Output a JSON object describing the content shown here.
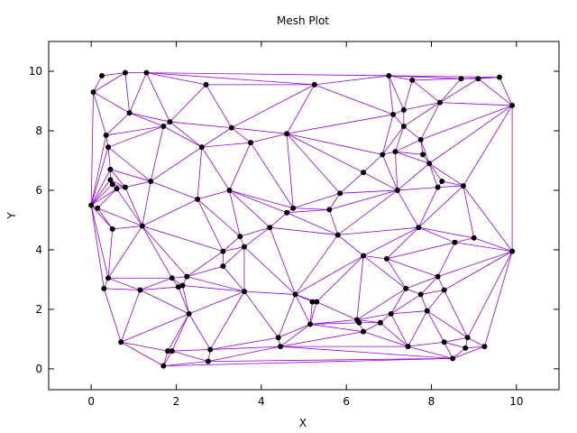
{
  "chart_data": {
    "type": "scatter",
    "title": "Mesh Plot",
    "xlabel": "X",
    "ylabel": "Y",
    "xlim": [
      -1,
      11
    ],
    "ylim": [
      -0.7,
      11
    ],
    "xticks": [
      0,
      2,
      4,
      6,
      8,
      10
    ],
    "yticks": [
      0,
      2,
      4,
      6,
      8,
      10
    ],
    "grid": false,
    "mesh_color": "#9400d3",
    "point_color": "#000000",
    "points": [
      [
        0.0,
        5.5
      ],
      [
        0.05,
        9.3
      ],
      [
        0.15,
        5.4
      ],
      [
        0.25,
        9.85
      ],
      [
        0.3,
        2.7
      ],
      [
        0.35,
        7.85
      ],
      [
        0.4,
        3.05
      ],
      [
        0.4,
        7.45
      ],
      [
        0.45,
        6.7
      ],
      [
        0.45,
        6.35
      ],
      [
        0.5,
        6.2
      ],
      [
        0.5,
        4.7
      ],
      [
        0.6,
        6.05
      ],
      [
        0.7,
        0.9
      ],
      [
        0.8,
        9.95
      ],
      [
        0.8,
        6.1
      ],
      [
        0.9,
        8.6
      ],
      [
        1.15,
        2.65
      ],
      [
        1.2,
        4.8
      ],
      [
        1.3,
        9.95
      ],
      [
        1.4,
        6.3
      ],
      [
        1.7,
        0.1
      ],
      [
        1.7,
        8.15
      ],
      [
        1.8,
        0.6
      ],
      [
        1.85,
        8.3
      ],
      [
        1.9,
        3.05
      ],
      [
        1.9,
        0.6
      ],
      [
        2.05,
        2.75
      ],
      [
        2.15,
        2.8
      ],
      [
        2.25,
        3.1
      ],
      [
        2.3,
        1.85
      ],
      [
        2.5,
        5.7
      ],
      [
        2.6,
        7.45
      ],
      [
        2.7,
        9.55
      ],
      [
        2.75,
        0.25
      ],
      [
        2.8,
        0.65
      ],
      [
        3.1,
        3.95
      ],
      [
        3.1,
        3.45
      ],
      [
        3.25,
        6.0
      ],
      [
        3.3,
        8.1
      ],
      [
        3.5,
        4.45
      ],
      [
        3.6,
        4.1
      ],
      [
        3.6,
        2.6
      ],
      [
        3.75,
        7.6
      ],
      [
        4.2,
        4.75
      ],
      [
        4.4,
        1.05
      ],
      [
        4.45,
        0.75
      ],
      [
        4.6,
        5.25
      ],
      [
        4.6,
        7.9
      ],
      [
        4.75,
        5.4
      ],
      [
        4.8,
        2.5
      ],
      [
        5.15,
        1.5
      ],
      [
        5.2,
        2.25
      ],
      [
        5.3,
        2.25
      ],
      [
        5.25,
        9.55
      ],
      [
        5.6,
        5.35
      ],
      [
        5.8,
        4.5
      ],
      [
        5.85,
        5.9
      ],
      [
        6.25,
        1.65
      ],
      [
        6.3,
        1.55
      ],
      [
        6.4,
        3.8
      ],
      [
        6.4,
        1.25
      ],
      [
        6.4,
        6.6
      ],
      [
        6.8,
        1.55
      ],
      [
        6.85,
        7.2
      ],
      [
        6.95,
        3.7
      ],
      [
        7.0,
        9.85
      ],
      [
        7.05,
        1.85
      ],
      [
        7.1,
        8.55
      ],
      [
        7.15,
        7.3
      ],
      [
        7.2,
        6.0
      ],
      [
        7.35,
        8.15
      ],
      [
        7.35,
        8.7
      ],
      [
        7.4,
        2.7
      ],
      [
        7.45,
        0.75
      ],
      [
        7.55,
        9.7
      ],
      [
        7.7,
        4.75
      ],
      [
        7.75,
        2.5
      ],
      [
        7.75,
        7.7
      ],
      [
        7.8,
        7.2
      ],
      [
        7.9,
        1.95
      ],
      [
        7.95,
        6.9
      ],
      [
        8.15,
        6.1
      ],
      [
        8.15,
        3.1
      ],
      [
        8.2,
        8.95
      ],
      [
        8.25,
        6.3
      ],
      [
        8.3,
        2.65
      ],
      [
        8.3,
        0.9
      ],
      [
        8.5,
        0.35
      ],
      [
        8.55,
        4.25
      ],
      [
        8.7,
        9.75
      ],
      [
        8.75,
        6.15
      ],
      [
        8.8,
        0.7
      ],
      [
        8.85,
        1.05
      ],
      [
        9.0,
        4.4
      ],
      [
        9.1,
        9.75
      ],
      [
        9.25,
        0.75
      ],
      [
        9.6,
        9.8
      ],
      [
        9.9,
        8.85
      ],
      [
        9.9,
        3.95
      ]
    ]
  }
}
